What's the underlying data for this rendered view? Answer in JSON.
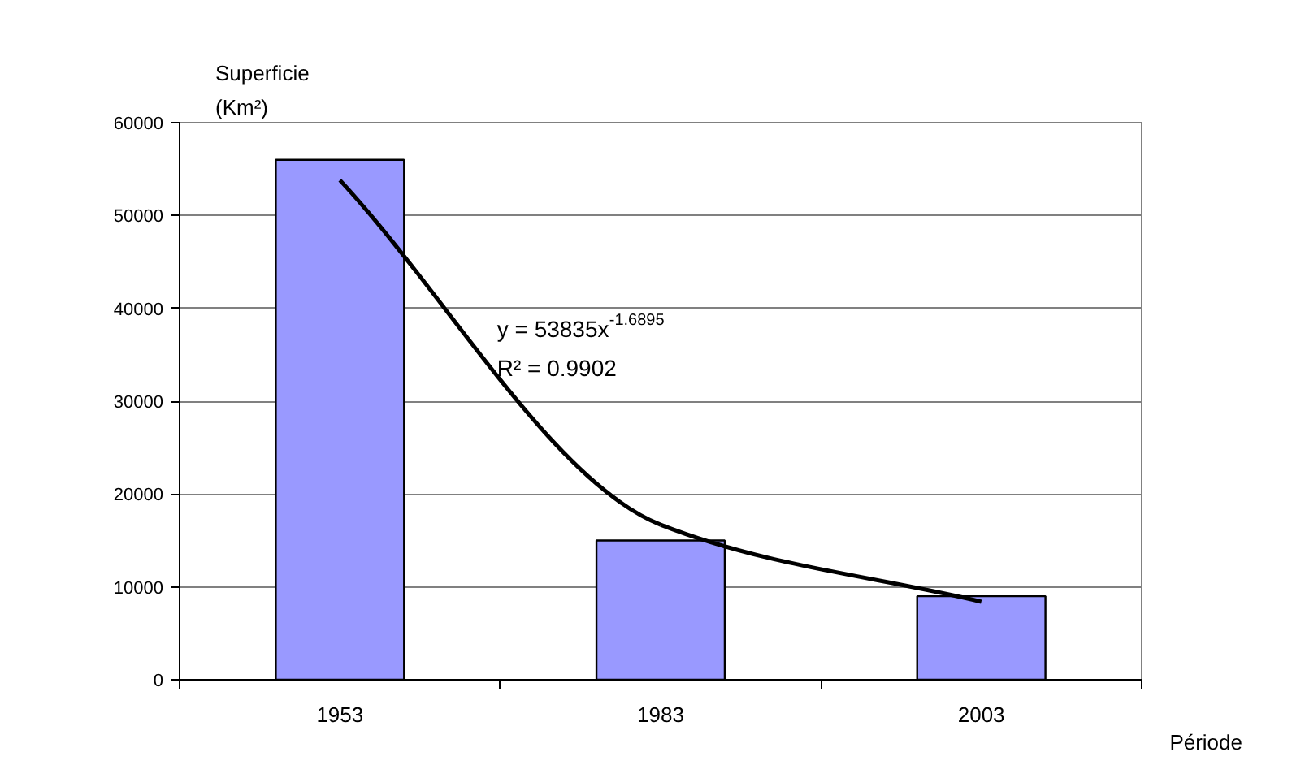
{
  "chart_data": {
    "type": "bar",
    "ylabel": "Superficie (Km²)",
    "xlabel": "Période",
    "categories": [
      "1953",
      "1983",
      "2003"
    ],
    "series": [
      {
        "color": "#9999ff",
        "values": [
          56000,
          15000,
          9000
        ]
      },
      {
        "type": "line",
        "color": "#000000",
        "values": [
          53800,
          16700,
          8400
        ]
      }
    ],
    "ylim": [
      0,
      60000
    ],
    "yticks": [
      0,
      10000,
      20000,
      30000,
      40000,
      50000,
      60000
    ],
    "grid": "y",
    "annotations": [
      "y = 53835x$^{-1.6895}$",
      "R² = 0.9902"
    ]
  }
}
